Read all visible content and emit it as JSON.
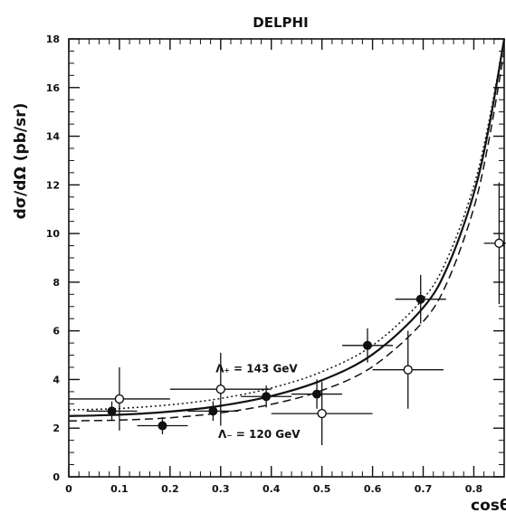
{
  "chart_data": {
    "type": "scatter",
    "title": "DELPHI",
    "xlabel": "cosθ",
    "ylabel": "dσ/dΩ (pb/sr)",
    "xlim": [
      0,
      0.86
    ],
    "ylim": [
      0,
      18
    ],
    "xticks": [
      "0",
      "0.1",
      "0.2",
      "0.3",
      "0.4",
      "0.5",
      "0.6",
      "0.7",
      "0.8"
    ],
    "yticks": [
      "0",
      "2",
      "4",
      "6",
      "8",
      "10",
      "12",
      "14",
      "16",
      "18"
    ],
    "grid": false,
    "series": [
      {
        "marker": "filled-circle",
        "points": [
          {
            "x": 0.085,
            "y": 2.7,
            "xerr": 0.05,
            "yerr": 0.4
          },
          {
            "x": 0.185,
            "y": 2.1,
            "xerr": 0.05,
            "yerr": 0.35
          },
          {
            "x": 0.285,
            "y": 2.7,
            "xerr": 0.05,
            "yerr": 0.4
          },
          {
            "x": 0.39,
            "y": 3.3,
            "xerr": 0.05,
            "yerr": 0.45
          },
          {
            "x": 0.49,
            "y": 3.4,
            "xerr": 0.05,
            "yerr": 0.6
          },
          {
            "x": 0.59,
            "y": 5.4,
            "xerr": 0.05,
            "yerr": 0.7
          },
          {
            "x": 0.695,
            "y": 7.3,
            "xerr": 0.05,
            "yerr": 1.0
          }
        ]
      },
      {
        "marker": "open-circle",
        "points": [
          {
            "x": 0.1,
            "y": 3.2,
            "xerr": 0.1,
            "yerr": 1.3
          },
          {
            "x": 0.3,
            "y": 3.6,
            "xerr": 0.1,
            "yerr": 1.5
          },
          {
            "x": 0.5,
            "y": 2.6,
            "xerr": 0.1,
            "yerr": 1.3
          },
          {
            "x": 0.67,
            "y": 4.4,
            "xerr": 0.07,
            "yerr": 1.6
          },
          {
            "x": 0.85,
            "y": 9.6,
            "xerr": 0.03,
            "yerr": 2.5
          }
        ]
      }
    ],
    "curves": [
      {
        "style": "solid",
        "x": [
          0,
          0.1,
          0.2,
          0.3,
          0.4,
          0.5,
          0.6,
          0.7,
          0.75,
          0.8,
          0.83,
          0.86
        ],
        "y": [
          2.5,
          2.55,
          2.68,
          2.92,
          3.32,
          3.97,
          5.03,
          6.95,
          8.72,
          11.64,
          14.38,
          18.0
        ]
      },
      {
        "style": "dotted",
        "x": [
          0,
          0.1,
          0.2,
          0.3,
          0.4,
          0.5,
          0.6,
          0.7,
          0.75,
          0.8,
          0.83,
          0.86
        ],
        "y": [
          2.75,
          2.81,
          2.96,
          3.22,
          3.65,
          4.32,
          5.4,
          7.32,
          9.08,
          11.95,
          14.62,
          18.0
        ]
      },
      {
        "style": "dashed",
        "x": [
          0,
          0.1,
          0.2,
          0.3,
          0.4,
          0.5,
          0.6,
          0.7,
          0.75,
          0.8,
          0.83,
          0.86
        ],
        "y": [
          2.3,
          2.33,
          2.43,
          2.63,
          2.98,
          3.55,
          4.53,
          6.38,
          8.12,
          11.05,
          13.85,
          17.5
        ]
      }
    ],
    "annotations": [
      {
        "text": "Λ₊ = 143 GeV",
        "x": 0.29,
        "y": 4.3
      },
      {
        "text": "Λ₋ = 120 GeV",
        "x": 0.295,
        "y": 1.6
      }
    ]
  }
}
